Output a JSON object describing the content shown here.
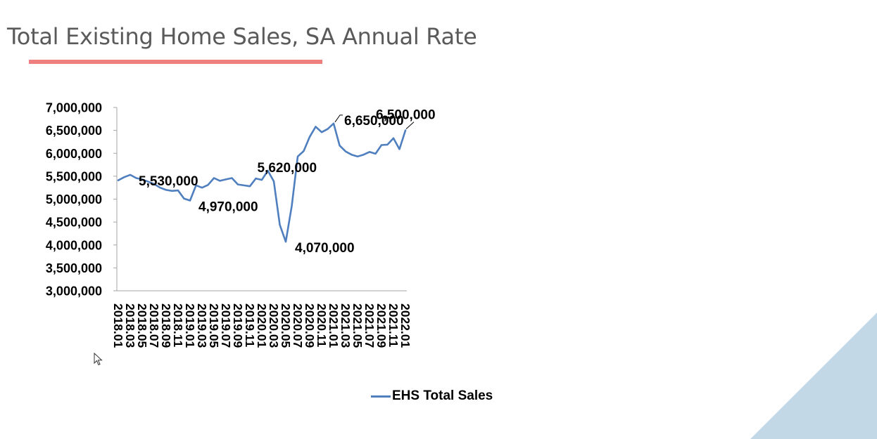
{
  "title": "Total Existing Home Sales, SA Annual Rate",
  "colors": {
    "accent_line": "#f08080",
    "series": "#4f7fbf",
    "corner": "#c2d8e6"
  },
  "icons": {
    "cursor": "mouse-pointer-icon"
  },
  "chart_data": {
    "type": "line",
    "legend_position": "bottom",
    "grid": false,
    "ylim": [
      3000000,
      7000000
    ],
    "y_ticks": [
      "7,000,000",
      "6,500,000",
      "6,000,000",
      "5,500,000",
      "5,000,000",
      "4,500,000",
      "4,000,000",
      "3,500,000",
      "3,000,000"
    ],
    "x": [
      "2018.01",
      "2018.02",
      "2018.03",
      "2018.04",
      "2018.05",
      "2018.06",
      "2018.07",
      "2018.08",
      "2018.09",
      "2018.10",
      "2018.11",
      "2018.12",
      "2019.01",
      "2019.02",
      "2019.03",
      "2019.04",
      "2019.05",
      "2019.06",
      "2019.07",
      "2019.08",
      "2019.09",
      "2019.10",
      "2019.11",
      "2019.12",
      "2020.01",
      "2020.02",
      "2020.03",
      "2020.04",
      "2020.05",
      "2020.06",
      "2020.07",
      "2020.08",
      "2020.09",
      "2020.10",
      "2020.11",
      "2020.12",
      "2021.01",
      "2021.02",
      "2021.03",
      "2021.04",
      "2021.05",
      "2021.06",
      "2021.07",
      "2021.08",
      "2021.09",
      "2021.10",
      "2021.11",
      "2021.12",
      "2022.01"
    ],
    "x_ticks": [
      "2018.01",
      "2018.03",
      "2018.05",
      "2018.07",
      "2018.09",
      "2018.11",
      "2019.01",
      "2019.03",
      "2019.05",
      "2019.07",
      "2019.09",
      "2019.11",
      "2020.01",
      "2020.03",
      "2020.05",
      "2020.07",
      "2020.09",
      "2020.11",
      "2021.01",
      "2021.03",
      "2021.05",
      "2021.07",
      "2021.09",
      "2021.11",
      "2022.01"
    ],
    "series": [
      {
        "name": "EHS Total Sales",
        "values": [
          5410000,
          5480000,
          5530000,
          5460000,
          5430000,
          5380000,
          5330000,
          5250000,
          5200000,
          5180000,
          5190000,
          5010000,
          4970000,
          5300000,
          5250000,
          5310000,
          5460000,
          5400000,
          5430000,
          5460000,
          5320000,
          5300000,
          5280000,
          5450000,
          5420000,
          5620000,
          5390000,
          4440000,
          4070000,
          4850000,
          5930000,
          6050000,
          6360000,
          6580000,
          6460000,
          6530000,
          6650000,
          6170000,
          6040000,
          5970000,
          5930000,
          5970000,
          6030000,
          5990000,
          6180000,
          6190000,
          6330000,
          6090000,
          6500000
        ]
      }
    ],
    "annotations": [
      {
        "text": "5,530,000",
        "x": "2018.03",
        "y": 5530000
      },
      {
        "text": "4,970,000",
        "x": "2019.01",
        "y": 4970000
      },
      {
        "text": "5,620,000",
        "x": "2020.02",
        "y": 5620000
      },
      {
        "text": "4,070,000",
        "x": "2020.05",
        "y": 4070000
      },
      {
        "text": "6,650,000",
        "x": "2021.01",
        "y": 6650000
      },
      {
        "text": "6,500,000",
        "x": "2022.01",
        "y": 6500000
      }
    ]
  }
}
